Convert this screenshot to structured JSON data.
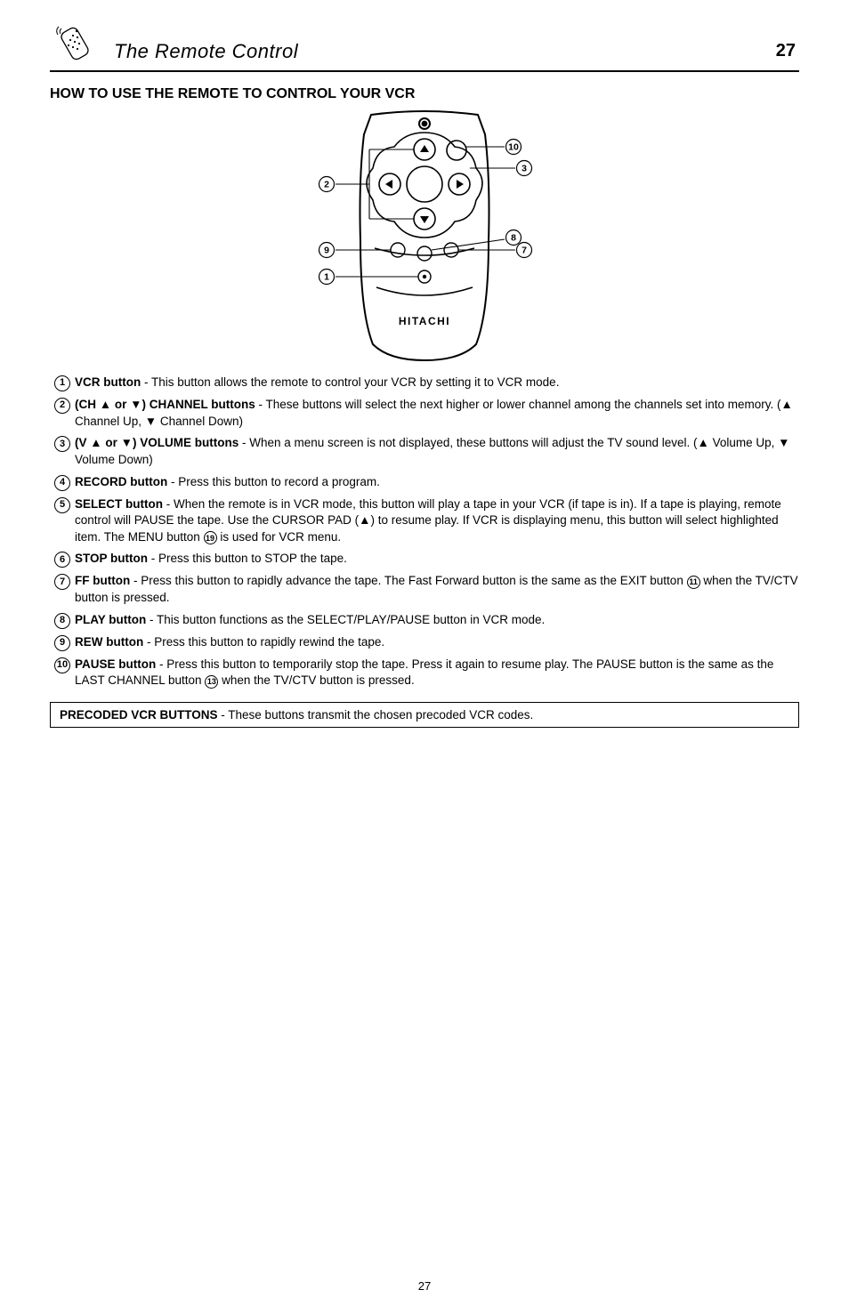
{
  "header": {
    "title": "The Remote Control",
    "page_top": "27"
  },
  "section_title": "HOW TO USE THE REMOTE TO CONTROL YOUR VCR",
  "remote": {
    "brand": "HITACHI",
    "callouts": {
      "top_right_a": "10",
      "top_right_b": "3",
      "left_upper": "2",
      "left_mid": "9",
      "left_low": "1",
      "right_mid_a": "8",
      "right_mid_b": "7"
    }
  },
  "items": [
    {
      "n": "1",
      "label": "VCR button",
      "text": " - This button allows the remote to control your VCR by setting it to VCR mode."
    },
    {
      "n": "2",
      "label": "(CH ▲ or ▼) CHANNEL buttons",
      "text": " - These buttons will select the next higher or lower channel among the channels set into memory. (▲ Channel Up, ▼ Channel Down)"
    },
    {
      "n": "3",
      "label": "(V ▲ or ▼) VOLUME buttons",
      "text": " - When a menu screen is not displayed, these buttons will adjust the TV sound level. (▲ Volume Up, ▼ Volume Down)"
    },
    {
      "n": "4",
      "label": "RECORD button",
      "text": " - Press this button to record a program."
    },
    {
      "n": "5",
      "label": "SELECT button",
      "text": " - When the remote is in VCR mode, this button will play a tape in your VCR (if tape is in). If a tape is playing, remote control will PAUSE the tape. Use the CURSOR PAD (▲) to resume play. If VCR is displaying menu, this button will select highlighted item. The MENU button ⑲ is used for VCR menu."
    },
    {
      "n": "6",
      "label": "STOP button",
      "text": " - Press this button to STOP the tape."
    },
    {
      "n": "7",
      "label": "FF button",
      "text": " - Press this button to rapidly advance the tape. The Fast Forward button is the same as the EXIT button ⑪ when the TV/CTV button is pressed."
    },
    {
      "n": "8",
      "label": "PLAY button",
      "text": " - This button functions as the SELECT/PLAY/PAUSE button in VCR mode."
    },
    {
      "n": "9",
      "label": "REW button",
      "text": " - Press this button to rapidly rewind the tape."
    },
    {
      "n": "10",
      "label": "PAUSE button",
      "text": " - Press this button to temporarily stop the tape. Press it again to resume play. The PAUSE button is the same as the LAST CHANNEL button ⑬ when the TV/CTV button is pressed."
    }
  ],
  "precode": {
    "title": "PRECODED VCR BUTTONS",
    "text": " - These buttons transmit the chosen precoded VCR codes."
  },
  "footer_page": "27"
}
